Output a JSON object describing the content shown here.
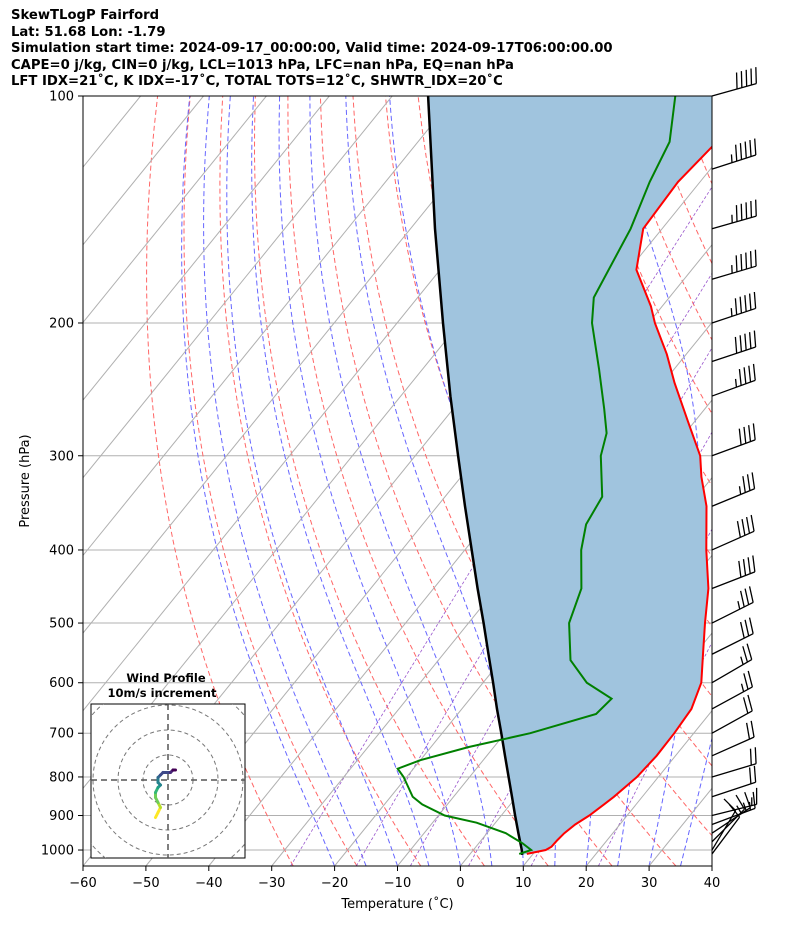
{
  "header": {
    "line1": "SkewTLogP Fairford",
    "line2": "Lat: 51.68   Lon: -1.79",
    "line3": "Simulation start time: 2024-09-17_00:00:00, Valid time: 2024-09-17T06:00:00.00",
    "line4": "CAPE=0 j/kg, CIN=0 j/kg, LCL=1013 hPa, LFC=nan hPa, EQ=nan hPa",
    "line5": "LFT IDX=21˚C, K IDX=-17˚C, TOTAL TOTS=12˚C, SHWTR_IDX=20˚C"
  },
  "chart_data": {
    "type": "line",
    "title": "SkewTLogP Fairford",
    "xlabel": "Temperature (˚C)",
    "ylabel": "Pressure (hPa)",
    "xlim": [
      -60,
      40
    ],
    "ylim": [
      1050,
      100
    ],
    "yscale": "log",
    "x_ticks": [
      -60,
      -50,
      -40,
      -30,
      -20,
      -10,
      0,
      10,
      20,
      30,
      40
    ],
    "y_ticks": [
      100,
      200,
      300,
      400,
      500,
      600,
      700,
      800,
      900,
      1000
    ],
    "grid": true,
    "colors": {
      "temperature": "#ff0000",
      "dewpoint": "#008000",
      "parcel": "#000000",
      "shade": "#a0c4de",
      "dry_adiabat": "#ff6666",
      "moist_adiabat": "#6666ff",
      "mixing_ratio": "#9955cc",
      "isotherm": "#b0b0b0"
    },
    "series": [
      {
        "name": "temperature",
        "p": [
          1012,
          1000,
          990,
          970,
          950,
          925,
          900,
          870,
          850,
          800,
          750,
          700,
          650,
          600,
          550,
          500,
          450,
          400,
          350,
          320,
          300,
          270,
          240,
          220,
          200,
          190,
          170,
          150,
          130,
          115,
          100
        ],
        "t": [
          9.0,
          11.5,
          12.0,
          12.1,
          12.3,
          12.9,
          14.0,
          14.9,
          15.5,
          16.6,
          17.0,
          16.9,
          16.5,
          14.7,
          11.3,
          7.6,
          3.7,
          -1.6,
          -7.2,
          -11.8,
          -14.7,
          -21.1,
          -28.2,
          -33.1,
          -39.0,
          -41.8,
          -48.8,
          -53.0,
          -53.5,
          -52.5,
          -53.0
        ]
      },
      {
        "name": "dewpoint",
        "p": [
          1012,
          1000,
          980,
          950,
          920,
          900,
          870,
          850,
          800,
          780,
          760,
          730,
          700,
          660,
          630,
          600,
          560,
          500,
          450,
          400,
          370,
          340,
          300,
          280,
          260,
          230,
          200,
          185,
          150,
          130,
          115,
          100
        ],
        "t": [
          7.8,
          9.2,
          7.0,
          3.0,
          -3.0,
          -9.0,
          -14.0,
          -16.5,
          -20.5,
          -22.5,
          -20.0,
          -14.0,
          -6.0,
          2.0,
          2.5,
          -3.5,
          -9.0,
          -14.0,
          -16.5,
          -21.5,
          -24.0,
          -25.0,
          -30.5,
          -32.5,
          -36.0,
          -42.0,
          -49.0,
          -52.0,
          -55.0,
          -58.0,
          -60.0,
          -65.0
        ]
      },
      {
        "name": "parcel",
        "p": [
          1015,
          1000,
          950,
          900,
          850,
          800,
          750,
          700,
          650,
          600,
          550,
          500,
          450,
          400,
          350,
          300,
          250,
          200,
          150,
          100
        ],
        "t": [
          8.4,
          7.7,
          5.0,
          2.2,
          -0.7,
          -3.8,
          -7.1,
          -10.6,
          -14.4,
          -18.4,
          -22.8,
          -27.6,
          -33.0,
          -38.9,
          -45.6,
          -53.2,
          -62.1,
          -72.7,
          -86.1,
          -104.3
        ]
      }
    ],
    "wind_barbs": {
      "p": [
        1012,
        1000,
        975,
        950,
        925,
        900,
        850,
        800,
        750,
        700,
        650,
        600,
        550,
        500,
        450,
        400,
        350,
        300,
        250,
        225,
        200,
        175,
        150,
        125,
        100
      ],
      "u": [
        3,
        3,
        5,
        6,
        8,
        8,
        9,
        10,
        9,
        9,
        11,
        12,
        14,
        16,
        18,
        18,
        17,
        19,
        22,
        24,
        27,
        27,
        28,
        28,
        25
      ],
      "v": [
        4,
        5,
        5,
        4,
        3,
        2,
        3,
        3,
        4,
        5,
        6,
        7,
        7,
        8,
        7,
        8,
        7,
        7,
        8,
        8,
        9,
        8,
        8,
        9,
        7
      ]
    },
    "inset": {
      "title": "Wind Profile",
      "subtitle": "10m/s increment",
      "rings_ms": [
        10,
        20,
        30,
        40
      ],
      "hodograph": {
        "u": [
          -5,
          -4,
          -3,
          -4,
          -5,
          -5,
          -4,
          -3,
          -4,
          -4,
          -3,
          -2,
          1,
          2,
          3
        ],
        "v": [
          -15,
          -13,
          -11,
          -9,
          -7,
          -5,
          -3,
          -2,
          -1,
          1,
          2,
          3,
          3,
          4,
          4
        ]
      }
    }
  }
}
